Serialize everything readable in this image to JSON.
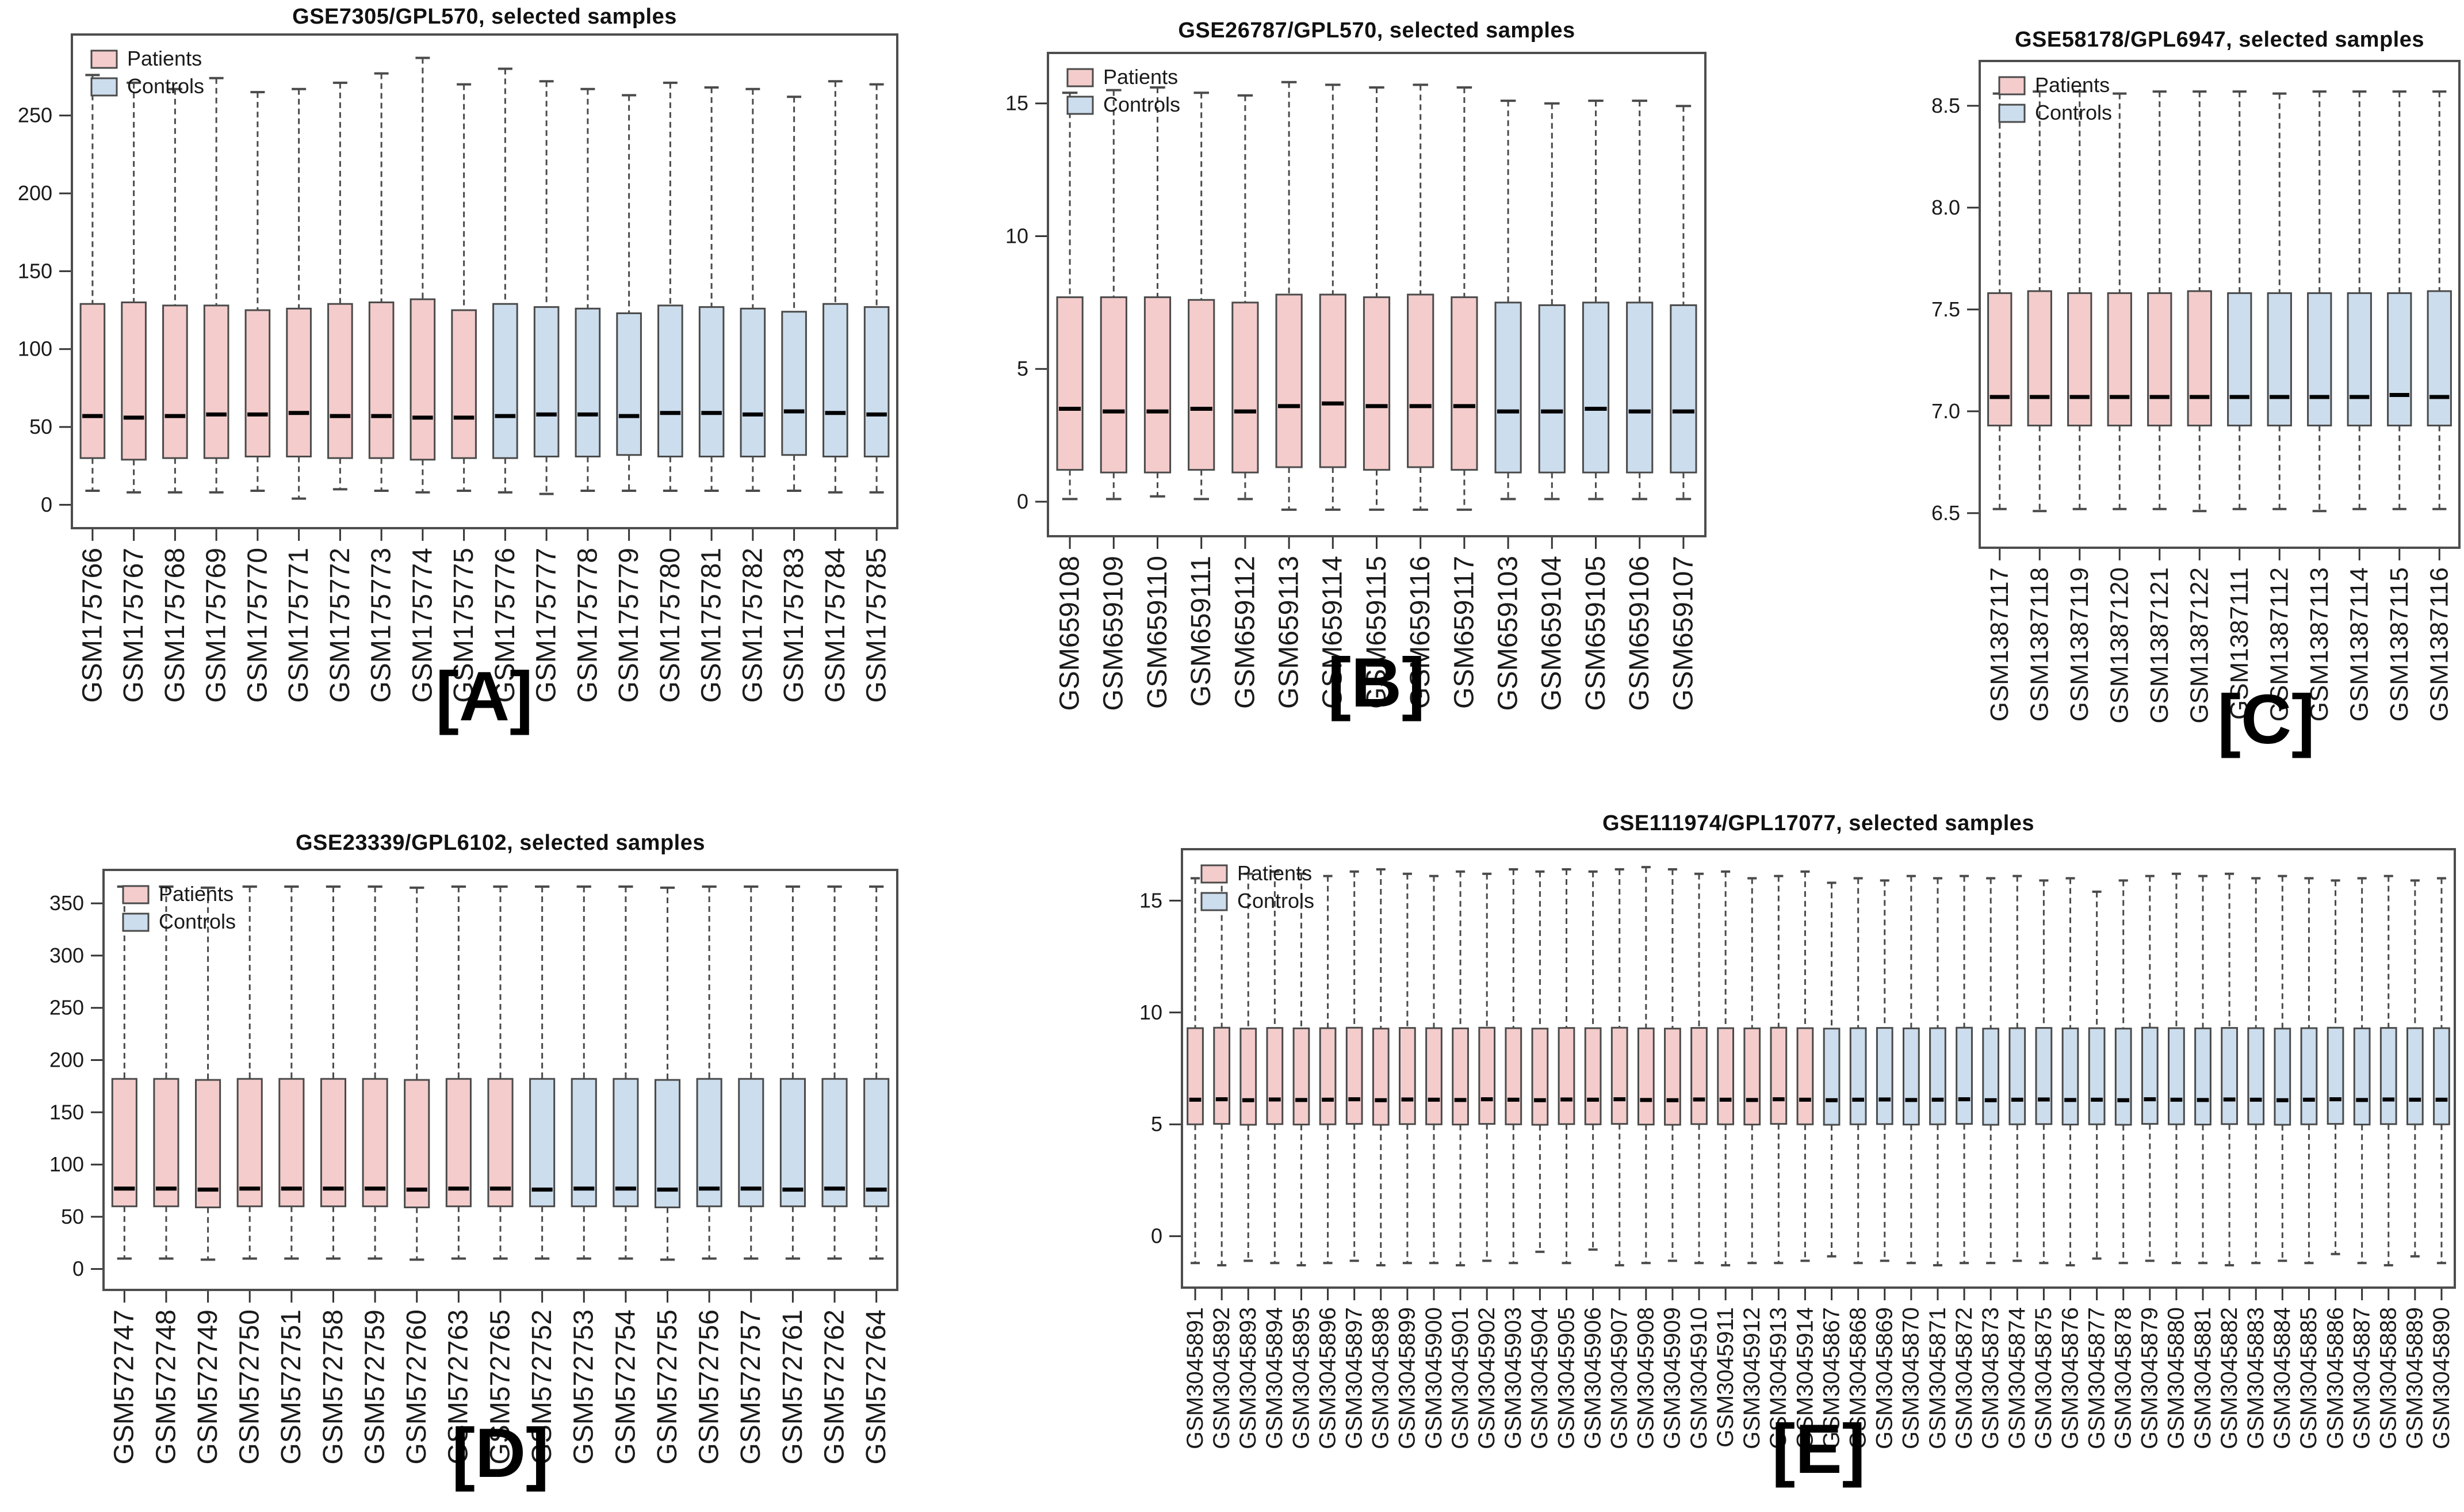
{
  "figure": {
    "legend": {
      "patients_label": "Patients",
      "controls_label": "Controls",
      "position": "top-left"
    },
    "colors": {
      "patients_fill": "#f4cccc",
      "controls_fill": "#ccdded",
      "box_border": "#4a4a4a",
      "whisker": "#4a4a4a",
      "median": "#000000",
      "frame": "#4d4d4d",
      "tick": "#333333",
      "text": "#1a1a1a",
      "background": "#ffffff"
    }
  },
  "chart_data": [
    {
      "type": "boxplot",
      "panel_label": "[A]",
      "title": "GSE7305/GPL570, selected samples",
      "legend": [
        "Patients",
        "Controls"
      ],
      "legend_position": "top-left",
      "grid": false,
      "ylim": [
        -15,
        302
      ],
      "ytick_values": [
        0,
        50,
        100,
        150,
        200,
        250
      ],
      "ytick_labels": [
        "0",
        "50",
        "100",
        "150",
        "200",
        "250"
      ],
      "n_patients": 10,
      "categories": [
        "GSM175766",
        "GSM175767",
        "GSM175768",
        "GSM175769",
        "GSM175770",
        "GSM175771",
        "GSM175772",
        "GSM175773",
        "GSM175774",
        "GSM175775",
        "GSM175776",
        "GSM175777",
        "GSM175778",
        "GSM175779",
        "GSM175780",
        "GSM175781",
        "GSM175782",
        "GSM175783",
        "GSM175784",
        "GSM175785"
      ],
      "stats": {
        "whisker_low": [
          9,
          8,
          8,
          8,
          9,
          4,
          10,
          9,
          8,
          9,
          8,
          7,
          9,
          9,
          9,
          9,
          9,
          9,
          8,
          8
        ],
        "q1": [
          30,
          29,
          30,
          30,
          31,
          31,
          30,
          30,
          29,
          30,
          30,
          31,
          31,
          32,
          31,
          31,
          31,
          32,
          31,
          31
        ],
        "median": [
          57,
          56,
          57,
          58,
          58,
          59,
          57,
          57,
          56,
          56,
          57,
          58,
          58,
          57,
          59,
          59,
          58,
          60,
          59,
          58
        ],
        "q3": [
          129,
          130,
          128,
          128,
          125,
          126,
          129,
          130,
          132,
          125,
          129,
          127,
          126,
          123,
          128,
          127,
          126,
          124,
          129,
          127
        ],
        "whisker_high": [
          276,
          271,
          267,
          274,
          265,
          267,
          271,
          277,
          287,
          270,
          280,
          272,
          267,
          263,
          271,
          268,
          267,
          262,
          272,
          270
        ]
      }
    },
    {
      "type": "boxplot",
      "panel_label": "[B]",
      "title": "GSE26787/GPL570, selected samples",
      "legend": [
        "Patients",
        "Controls"
      ],
      "legend_position": "top-left",
      "grid": false,
      "ylim": [
        -1.3,
        16.9
      ],
      "ytick_values": [
        0,
        5,
        10,
        15
      ],
      "ytick_labels": [
        "0",
        "5",
        "10",
        "15"
      ],
      "n_patients": 10,
      "categories": [
        "GSM659108",
        "GSM659109",
        "GSM659110",
        "GSM659111",
        "GSM659112",
        "GSM659113",
        "GSM659114",
        "GSM659115",
        "GSM659116",
        "GSM659117",
        "GSM659103",
        "GSM659104",
        "GSM659105",
        "GSM659106",
        "GSM659107"
      ],
      "stats": {
        "whisker_low": [
          0.1,
          0.1,
          0.2,
          0.1,
          0.1,
          -0.3,
          -0.3,
          -0.3,
          -0.3,
          -0.3,
          0.1,
          0.1,
          0.1,
          0.1,
          0.1
        ],
        "q1": [
          1.2,
          1.1,
          1.1,
          1.2,
          1.1,
          1.3,
          1.3,
          1.2,
          1.3,
          1.2,
          1.1,
          1.1,
          1.1,
          1.1,
          1.1
        ],
        "median": [
          3.5,
          3.4,
          3.4,
          3.5,
          3.4,
          3.6,
          3.7,
          3.6,
          3.6,
          3.6,
          3.4,
          3.4,
          3.5,
          3.4,
          3.4
        ],
        "q3": [
          7.7,
          7.7,
          7.7,
          7.6,
          7.5,
          7.8,
          7.8,
          7.7,
          7.8,
          7.7,
          7.5,
          7.4,
          7.5,
          7.5,
          7.4
        ],
        "whisker_high": [
          15.4,
          15.5,
          15.6,
          15.4,
          15.3,
          15.8,
          15.7,
          15.6,
          15.7,
          15.6,
          15.1,
          15.0,
          15.1,
          15.1,
          14.9
        ]
      }
    },
    {
      "type": "boxplot",
      "panel_label": "[C]",
      "title": "GSE58178/GPL6947, selected samples",
      "legend": [
        "Patients",
        "Controls"
      ],
      "legend_position": "top-left",
      "grid": false,
      "ylim": [
        6.33,
        8.72
      ],
      "ytick_values": [
        6.5,
        7.0,
        7.5,
        8.0,
        8.5
      ],
      "ytick_labels": [
        "6.5",
        "7.0",
        "7.5",
        "8.0",
        "8.5"
      ],
      "n_patients": 6,
      "categories": [
        "GSM1387117",
        "GSM1387118",
        "GSM1387119",
        "GSM1387120",
        "GSM1387121",
        "GSM1387122",
        "GSM1387111",
        "GSM1387112",
        "GSM1387113",
        "GSM1387114",
        "GSM1387115",
        "GSM1387116"
      ],
      "stats": {
        "whisker_low": [
          6.52,
          6.51,
          6.52,
          6.52,
          6.52,
          6.51,
          6.52,
          6.52,
          6.51,
          6.52,
          6.52,
          6.52
        ],
        "q1": [
          6.93,
          6.93,
          6.93,
          6.93,
          6.93,
          6.93,
          6.93,
          6.93,
          6.93,
          6.93,
          6.93,
          6.93
        ],
        "median": [
          7.07,
          7.07,
          7.07,
          7.07,
          7.07,
          7.07,
          7.07,
          7.07,
          7.07,
          7.07,
          7.08,
          7.07
        ],
        "q3": [
          7.58,
          7.59,
          7.58,
          7.58,
          7.58,
          7.59,
          7.58,
          7.58,
          7.58,
          7.58,
          7.58,
          7.59
        ],
        "whisker_high": [
          8.56,
          8.57,
          8.57,
          8.56,
          8.57,
          8.57,
          8.57,
          8.56,
          8.57,
          8.57,
          8.57,
          8.57
        ]
      }
    },
    {
      "type": "boxplot",
      "panel_label": "[D]",
      "title": "GSE23339/GPL6102, selected samples",
      "legend": [
        "Patients",
        "Controls"
      ],
      "legend_position": "top-left",
      "grid": false,
      "ylim": [
        -20,
        382
      ],
      "ytick_values": [
        0,
        50,
        100,
        150,
        200,
        250,
        300,
        350
      ],
      "ytick_labels": [
        "0",
        "50",
        "100",
        "150",
        "200",
        "250",
        "300",
        "350"
      ],
      "n_patients": 10,
      "categories": [
        "GSM572747",
        "GSM572748",
        "GSM572749",
        "GSM572750",
        "GSM572751",
        "GSM572758",
        "GSM572759",
        "GSM572760",
        "GSM572763",
        "GSM572765",
        "GSM572752",
        "GSM572753",
        "GSM572754",
        "GSM572755",
        "GSM572756",
        "GSM572757",
        "GSM572761",
        "GSM572762",
        "GSM572764"
      ],
      "stats": {
        "whisker_low": [
          10,
          10,
          9,
          10,
          10,
          10,
          10,
          9,
          10,
          10,
          10,
          10,
          10,
          9,
          10,
          10,
          10,
          10,
          10
        ],
        "q1": [
          60,
          60,
          59,
          60,
          60,
          60,
          60,
          59,
          60,
          60,
          60,
          60,
          60,
          59,
          60,
          60,
          60,
          60,
          60
        ],
        "median": [
          77,
          77,
          76,
          77,
          77,
          77,
          77,
          76,
          77,
          77,
          76,
          77,
          77,
          76,
          77,
          77,
          76,
          77,
          76
        ],
        "q3": [
          182,
          182,
          181,
          182,
          182,
          182,
          182,
          181,
          182,
          182,
          182,
          182,
          182,
          181,
          182,
          182,
          182,
          182,
          182
        ],
        "whisker_high": [
          366,
          366,
          365,
          366,
          366,
          366,
          366,
          365,
          366,
          366,
          366,
          366,
          366,
          365,
          366,
          366,
          366,
          366,
          366
        ]
      }
    },
    {
      "type": "boxplot",
      "panel_label": "[E]",
      "title": "GSE111974/GPL17077, selected samples",
      "legend": [
        "Patients",
        "Controls"
      ],
      "legend_position": "top-left",
      "grid": false,
      "ylim": [
        -2.3,
        17.3
      ],
      "ytick_values": [
        0,
        5,
        10,
        15
      ],
      "ytick_labels": [
        "0",
        "5",
        "10",
        "15"
      ],
      "n_patients": 24,
      "categories": [
        "GSM3045891",
        "GSM3045892",
        "GSM3045893",
        "GSM3045894",
        "GSM3045895",
        "GSM3045896",
        "GSM3045897",
        "GSM3045898",
        "GSM3045899",
        "GSM3045900",
        "GSM3045901",
        "GSM3045902",
        "GSM3045903",
        "GSM3045904",
        "GSM3045905",
        "GSM3045906",
        "GSM3045907",
        "GSM3045908",
        "GSM3045909",
        "GSM3045910",
        "GSM3045911",
        "GSM3045912",
        "GSM3045913",
        "GSM3045914",
        "GSM3045867",
        "GSM3045868",
        "GSM3045869",
        "GSM3045870",
        "GSM3045871",
        "GSM3045872",
        "GSM3045873",
        "GSM3045874",
        "GSM3045875",
        "GSM3045876",
        "GSM3045877",
        "GSM3045878",
        "GSM3045879",
        "GSM3045880",
        "GSM3045881",
        "GSM3045882",
        "GSM3045883",
        "GSM3045884",
        "GSM3045885",
        "GSM3045886",
        "GSM3045887",
        "GSM3045888",
        "GSM3045889",
        "GSM3045890"
      ],
      "stats": {
        "whisker_low": [
          -1.2,
          -1.3,
          -1.1,
          -1.2,
          -1.3,
          -1.2,
          -1.1,
          -1.3,
          -1.2,
          -1.2,
          -1.3,
          -1.1,
          -1.2,
          -0.7,
          -1.2,
          -0.6,
          -1.3,
          -1.2,
          -1.1,
          -1.2,
          -1.3,
          -1.2,
          -1.2,
          -1.1,
          -0.9,
          -1.2,
          -1.1,
          -1.2,
          -1.3,
          -1.2,
          -1.2,
          -1.1,
          -1.2,
          -1.3,
          -1.0,
          -1.2,
          -1.1,
          -1.2,
          -1.2,
          -1.3,
          -1.2,
          -1.1,
          -1.2,
          -0.8,
          -1.2,
          -1.3,
          -0.9,
          -1.2
        ],
        "q1": [
          5.0,
          5.02,
          4.98,
          5.01,
          4.99,
          5.0,
          5.02,
          4.98,
          5.01,
          5.0,
          4.99,
          5.02,
          5.0,
          4.98,
          5.01,
          5.0,
          5.02,
          4.99,
          4.98,
          5.01,
          5.0,
          4.99,
          5.02,
          5.0,
          4.98,
          5.0,
          5.01,
          4.99,
          5.0,
          5.02,
          4.98,
          5.0,
          5.01,
          4.99,
          5.0,
          4.98,
          5.02,
          5.0,
          4.99,
          5.01,
          5.0,
          4.98,
          5.0,
          5.02,
          4.99,
          5.01,
          5.0,
          5.0
        ],
        "median": [
          6.1,
          6.12,
          6.08,
          6.11,
          6.09,
          6.1,
          6.12,
          6.08,
          6.11,
          6.1,
          6.09,
          6.12,
          6.1,
          6.08,
          6.11,
          6.1,
          6.12,
          6.09,
          6.08,
          6.11,
          6.1,
          6.09,
          6.12,
          6.1,
          6.08,
          6.1,
          6.11,
          6.09,
          6.1,
          6.12,
          6.08,
          6.1,
          6.11,
          6.09,
          6.1,
          6.08,
          6.12,
          6.1,
          6.09,
          6.11,
          6.1,
          6.08,
          6.1,
          6.12,
          6.09,
          6.11,
          6.1,
          6.1
        ],
        "q3": [
          9.3,
          9.32,
          9.28,
          9.31,
          9.29,
          9.3,
          9.32,
          9.28,
          9.31,
          9.3,
          9.29,
          9.32,
          9.3,
          9.28,
          9.31,
          9.3,
          9.32,
          9.29,
          9.28,
          9.31,
          9.3,
          9.29,
          9.32,
          9.3,
          9.28,
          9.3,
          9.31,
          9.29,
          9.3,
          9.32,
          9.28,
          9.3,
          9.31,
          9.29,
          9.3,
          9.28,
          9.32,
          9.3,
          9.29,
          9.31,
          9.3,
          9.28,
          9.3,
          9.32,
          9.29,
          9.31,
          9.3,
          9.3
        ],
        "whisker_high": [
          16.0,
          16.1,
          16.2,
          16.3,
          16.2,
          16.1,
          16.3,
          16.4,
          16.2,
          16.1,
          16.3,
          16.2,
          16.4,
          16.3,
          16.4,
          16.3,
          16.4,
          16.5,
          16.4,
          16.2,
          16.3,
          16.0,
          16.1,
          16.3,
          15.8,
          16.0,
          15.9,
          16.1,
          16.0,
          16.1,
          16.0,
          16.1,
          15.9,
          16.0,
          15.4,
          15.9,
          16.1,
          16.2,
          16.1,
          16.2,
          16.0,
          16.1,
          16.0,
          15.9,
          16.0,
          16.1,
          15.9,
          16.0
        ]
      }
    }
  ]
}
